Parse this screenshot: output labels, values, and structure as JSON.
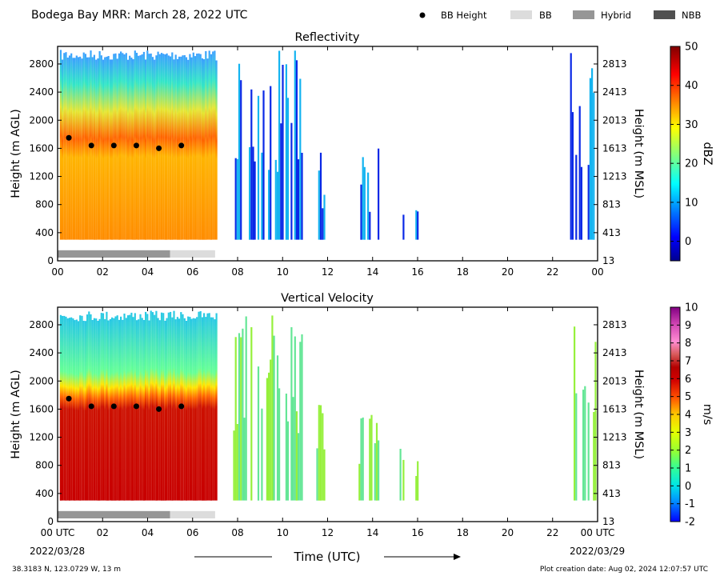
{
  "header": {
    "title": "Bodega Bay MRR:  March 28, 2022 UTC",
    "legend": [
      {
        "label": "BB Height",
        "kind": "dot",
        "color": "#000000"
      },
      {
        "label": "BB",
        "kind": "box",
        "color": "#dcdcdc"
      },
      {
        "label": "Hybrid",
        "kind": "box",
        "color": "#969696"
      },
      {
        "label": "NBB",
        "kind": "box",
        "color": "#505050"
      }
    ]
  },
  "footer": {
    "location": "38.3183 N, 123.0729 W, 13 m",
    "creation": "Plot creation date: Aug 02, 2024 12:07:57 UTC",
    "xlabel": "Time (UTC)",
    "start_date": "2022/03/28",
    "end_date": "2022/03/29"
  },
  "chart_data": [
    {
      "type": "heatmap",
      "title": "Reflectivity",
      "ylabel": "Height (m AGL)",
      "ylabel_right": "Height (m MSL)",
      "xlim": [
        0,
        24
      ],
      "ylim": [
        0,
        3050
      ],
      "x_ticks": [
        "00",
        "02",
        "04",
        "06",
        "08",
        "10",
        "12",
        "14",
        "16",
        "18",
        "20",
        "22",
        "00"
      ],
      "y_ticks": [
        0,
        400,
        800,
        1200,
        1600,
        2000,
        2400,
        2800
      ],
      "y_ticks_right": [
        13,
        413,
        813,
        1213,
        1613,
        2013,
        2413,
        2813
      ],
      "colorbar": {
        "label": "dBZ",
        "min": -5,
        "max": 50,
        "ticks": [
          0,
          10,
          20,
          30,
          40,
          50
        ]
      },
      "bb_height": [
        {
          "time": 0.5,
          "height": 1750
        },
        {
          "time": 1.5,
          "height": 1640
        },
        {
          "time": 2.5,
          "height": 1640
        },
        {
          "time": 3.5,
          "height": 1640
        },
        {
          "time": 4.5,
          "height": 1600
        },
        {
          "time": 5.5,
          "height": 1640
        }
      ],
      "bb_type": [
        {
          "start": 0,
          "end": 5,
          "type": "Hybrid"
        },
        {
          "start": 5,
          "end": 7,
          "type": "BB"
        }
      ]
    },
    {
      "type": "heatmap",
      "title": "Vertical Velocity",
      "ylabel": "Height (m AGL)",
      "ylabel_right": "Height (m MSL)",
      "xlim": [
        0,
        24
      ],
      "ylim": [
        0,
        3050
      ],
      "x_ticks": [
        "00 UTC",
        "02",
        "04",
        "06",
        "08",
        "10",
        "12",
        "14",
        "16",
        "18",
        "20",
        "22",
        "00 UTC"
      ],
      "y_ticks": [
        0,
        400,
        800,
        1200,
        1600,
        2000,
        2400,
        2800
      ],
      "y_ticks_right": [
        13,
        413,
        813,
        1213,
        1613,
        2013,
        2413,
        2813
      ],
      "colorbar": {
        "label": "m/s",
        "min": -2,
        "max": 10,
        "ticks": [
          -2,
          -1,
          0,
          1,
          2,
          3,
          4,
          5,
          6,
          7,
          8,
          9,
          10
        ]
      },
      "bb_height": [
        {
          "time": 0.5,
          "height": 1750
        },
        {
          "time": 1.5,
          "height": 1640
        },
        {
          "time": 2.5,
          "height": 1640
        },
        {
          "time": 3.5,
          "height": 1640
        },
        {
          "time": 4.5,
          "height": 1600
        },
        {
          "time": 5.5,
          "height": 1640
        }
      ],
      "bb_type": [
        {
          "start": 0,
          "end": 5,
          "type": "Hybrid"
        },
        {
          "start": 5,
          "end": 7,
          "type": "BB"
        }
      ]
    }
  ]
}
